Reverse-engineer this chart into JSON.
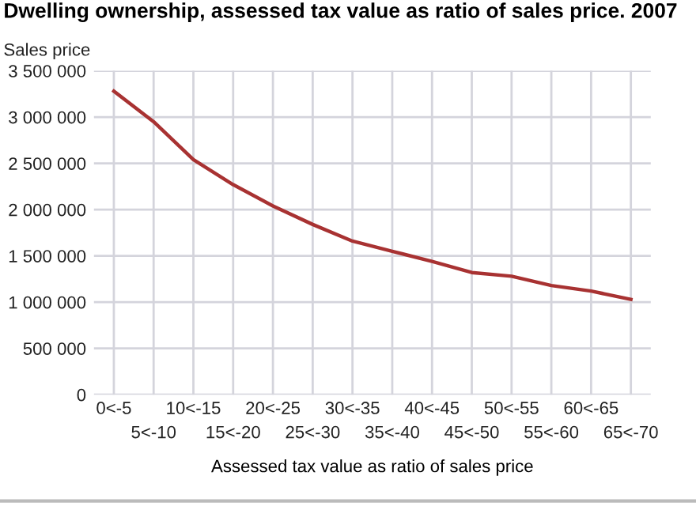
{
  "chart_data": {
    "type": "line",
    "title": "Dwelling ownership, assessed tax value as ratio of sales price. 2007",
    "ylabel": "Sales price",
    "xlabel": "Assessed tax value as ratio of sales price",
    "categories": [
      "0<-5",
      "5<-10",
      "10<-15",
      "15<-20",
      "20<-25",
      "25<-30",
      "30<-35",
      "35<-40",
      "40<-45",
      "45<-50",
      "50<-55",
      "55<-60",
      "60<-65",
      "65<-70"
    ],
    "series": [
      {
        "color": "#a83232",
        "values": [
          3280000,
          2950000,
          2540000,
          2270000,
          2040000,
          1840000,
          1660000,
          1550000,
          1440000,
          1320000,
          1280000,
          1180000,
          1120000,
          1030000
        ]
      }
    ],
    "ylim": [
      0,
      3500000
    ],
    "yticks": [
      {
        "value": 0,
        "label": "0"
      },
      {
        "value": 500000,
        "label": "500 000"
      },
      {
        "value": 1000000,
        "label": "1 000 000"
      },
      {
        "value": 1500000,
        "label": "1 500 000"
      },
      {
        "value": 2000000,
        "label": "2 000 000"
      },
      {
        "value": 2500000,
        "label": "2 500 000"
      },
      {
        "value": 3000000,
        "label": "3 000 000"
      },
      {
        "value": 3500000,
        "label": "3 500 000"
      }
    ],
    "grid": true,
    "marker": "none",
    "line_style": "solid"
  }
}
